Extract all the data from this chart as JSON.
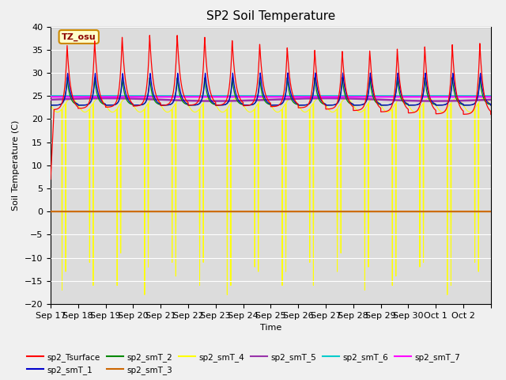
{
  "title": "SP2 Soil Temperature",
  "ylabel": "Soil Temperature (C)",
  "xlabel": "Time",
  "annotation": "TZ_osu",
  "ylim": [
    -20,
    40
  ],
  "background_color": "#dcdcdc",
  "grid_color": "#ffffff",
  "colors": {
    "sp2_Tsurface": "#ff0000",
    "sp2_smT_1": "#0000cc",
    "sp2_smT_2": "#008800",
    "sp2_smT_3": "#cc6600",
    "sp2_smT_4": "#ffff00",
    "sp2_smT_5": "#9933aa",
    "sp2_smT_6": "#00cccc",
    "sp2_smT_7": "#ff00ff"
  },
  "x_tick_labels": [
    "Sep 17",
    "Sep 18",
    "Sep 19",
    "Sep 20",
    "Sep 21",
    "Sep 22",
    "Sep 23",
    "Sep 24",
    "Sep 25",
    "Sep 26",
    "Sep 27",
    "Sep 28",
    "Sep 29",
    "Sep 30",
    "Oct 1",
    "Oct 2"
  ],
  "num_days": 16,
  "pts_per_day": 288,
  "surface_base": 22,
  "surface_amp": 14,
  "smT1_base": 23,
  "smT1_amp": 7,
  "smT2_base": 23,
  "smT2_amp": 6,
  "smT5_level": 24.2,
  "smT6_level": 25.0,
  "smT7_level": 24.8,
  "smT3_level": 0.0
}
